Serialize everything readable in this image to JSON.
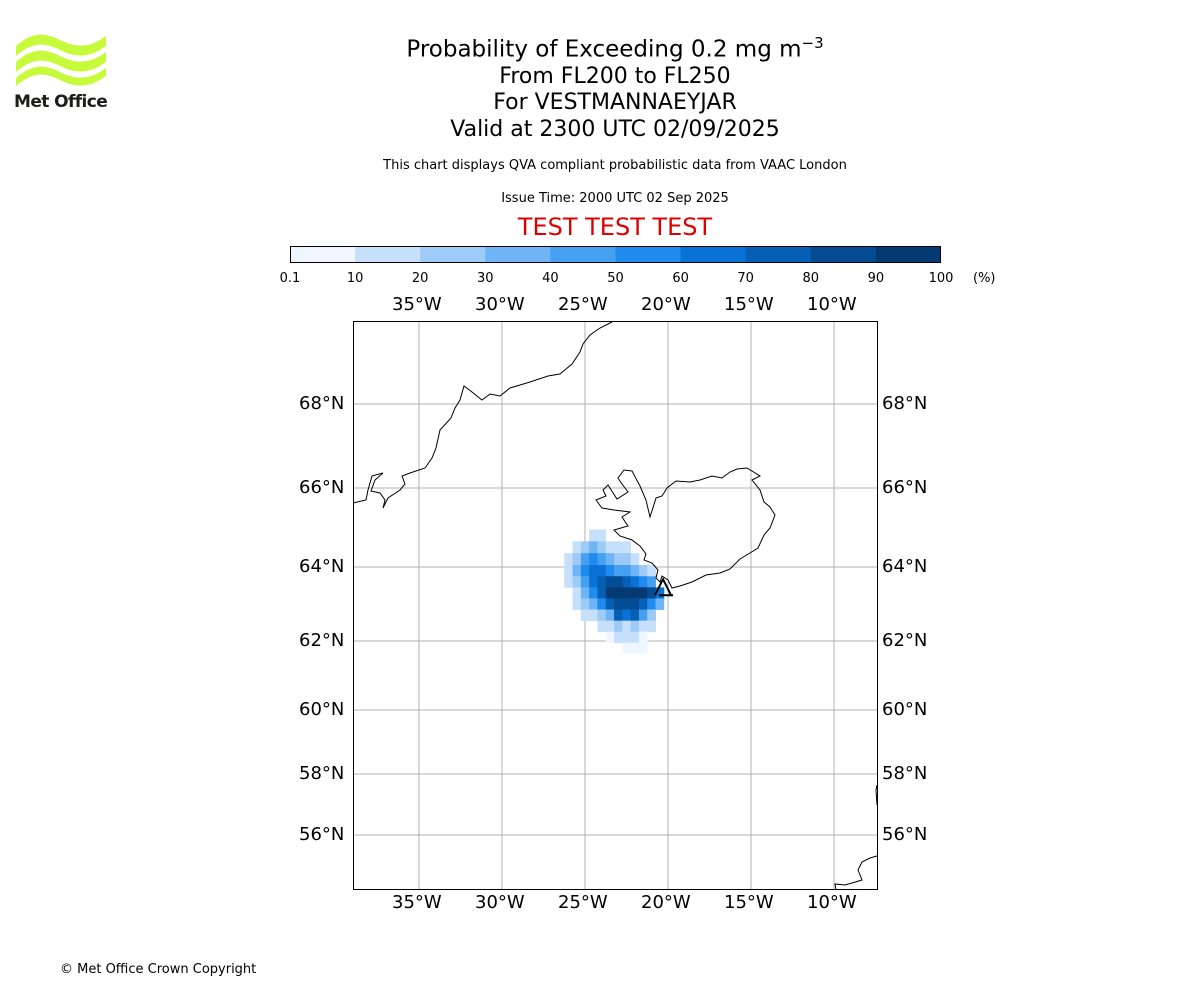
{
  "logo": {
    "text": "Met Office",
    "accent": "#c8fa3c"
  },
  "title": {
    "line1": "Probability of Exceeding 0.2 mg m",
    "line1_sup": "−3",
    "line2": "From FL200 to FL250",
    "line3": "For VESTMANNAEYJAR",
    "line4": "Valid at 2300 UTC 02/09/2025"
  },
  "subtitle": "This chart displays QVA compliant probabilistic data from VAAC London",
  "issue_time": "Issue Time: 2000 UTC 02 Sep 2025",
  "test_banner": {
    "text": "TEST TEST TEST",
    "color": "#dd0000"
  },
  "colorbar": {
    "ticks": [
      "0.1",
      "10",
      "20",
      "30",
      "40",
      "50",
      "60",
      "70",
      "80",
      "90",
      "100"
    ],
    "colors": [
      "#f0f6ff",
      "#c6e0fb",
      "#9dcaf7",
      "#6fb4f4",
      "#45a0f2",
      "#1f8bef",
      "#0a72d6",
      "#055fb5",
      "#044c94",
      "#033a73",
      "#022c55"
    ],
    "unit": "(%)"
  },
  "map": {
    "lon_labels": [
      "35°W",
      "30°W",
      "25°W",
      "20°W",
      "15°W",
      "10°W"
    ],
    "lat_labels": [
      "68°N",
      "66°N",
      "64°N",
      "62°N",
      "60°N",
      "58°N",
      "56°N"
    ],
    "grid": true,
    "volcano_marker": "triangle-icon"
  },
  "chart_data": {
    "type": "heatmap",
    "lon_range": [
      -39,
      -7.5
    ],
    "lat_range": [
      54.5,
      70
    ],
    "unit": "%",
    "cells": [
      {
        "lon": -24.5,
        "lat": 64.8,
        "value": 15
      },
      {
        "lon": -24.0,
        "lat": 64.8,
        "value": 15
      },
      {
        "lon": -25.5,
        "lat": 64.5,
        "value": 15
      },
      {
        "lon": -25.0,
        "lat": 64.5,
        "value": 25
      },
      {
        "lon": -24.5,
        "lat": 64.5,
        "value": 35
      },
      {
        "lon": -24.0,
        "lat": 64.5,
        "value": 25
      },
      {
        "lon": -23.5,
        "lat": 64.5,
        "value": 15
      },
      {
        "lon": -23.0,
        "lat": 64.5,
        "value": 15
      },
      {
        "lon": -22.5,
        "lat": 64.5,
        "value": 15
      },
      {
        "lon": -26.0,
        "lat": 64.2,
        "value": 15
      },
      {
        "lon": -25.5,
        "lat": 64.2,
        "value": 25
      },
      {
        "lon": -25.0,
        "lat": 64.2,
        "value": 45
      },
      {
        "lon": -24.5,
        "lat": 64.2,
        "value": 55
      },
      {
        "lon": -24.0,
        "lat": 64.2,
        "value": 45
      },
      {
        "lon": -23.5,
        "lat": 64.2,
        "value": 35
      },
      {
        "lon": -23.0,
        "lat": 64.2,
        "value": 25
      },
      {
        "lon": -22.5,
        "lat": 64.2,
        "value": 25
      },
      {
        "lon": -22.0,
        "lat": 64.2,
        "value": 15
      },
      {
        "lon": -26.0,
        "lat": 63.9,
        "value": 15
      },
      {
        "lon": -25.5,
        "lat": 63.9,
        "value": 35
      },
      {
        "lon": -25.0,
        "lat": 63.9,
        "value": 55
      },
      {
        "lon": -24.5,
        "lat": 63.9,
        "value": 65
      },
      {
        "lon": -24.0,
        "lat": 63.9,
        "value": 65
      },
      {
        "lon": -23.5,
        "lat": 63.9,
        "value": 55
      },
      {
        "lon": -23.0,
        "lat": 63.9,
        "value": 45
      },
      {
        "lon": -22.5,
        "lat": 63.9,
        "value": 45
      },
      {
        "lon": -22.0,
        "lat": 63.9,
        "value": 35
      },
      {
        "lon": -21.5,
        "lat": 63.9,
        "value": 25
      },
      {
        "lon": -21.0,
        "lat": 63.9,
        "value": 15
      },
      {
        "lon": -26.0,
        "lat": 63.6,
        "value": 15
      },
      {
        "lon": -25.5,
        "lat": 63.6,
        "value": 25
      },
      {
        "lon": -25.0,
        "lat": 63.6,
        "value": 45
      },
      {
        "lon": -24.5,
        "lat": 63.6,
        "value": 65
      },
      {
        "lon": -24.0,
        "lat": 63.6,
        "value": 75
      },
      {
        "lon": -23.5,
        "lat": 63.6,
        "value": 85
      },
      {
        "lon": -23.0,
        "lat": 63.6,
        "value": 85
      },
      {
        "lon": -22.5,
        "lat": 63.6,
        "value": 75
      },
      {
        "lon": -22.0,
        "lat": 63.6,
        "value": 65
      },
      {
        "lon": -21.5,
        "lat": 63.6,
        "value": 55
      },
      {
        "lon": -21.0,
        "lat": 63.6,
        "value": 45
      },
      {
        "lon": -25.5,
        "lat": 63.3,
        "value": 15
      },
      {
        "lon": -25.0,
        "lat": 63.3,
        "value": 35
      },
      {
        "lon": -24.5,
        "lat": 63.3,
        "value": 55
      },
      {
        "lon": -24.0,
        "lat": 63.3,
        "value": 75
      },
      {
        "lon": -23.5,
        "lat": 63.3,
        "value": 95
      },
      {
        "lon": -23.0,
        "lat": 63.3,
        "value": 95
      },
      {
        "lon": -22.5,
        "lat": 63.3,
        "value": 95
      },
      {
        "lon": -22.0,
        "lat": 63.3,
        "value": 95
      },
      {
        "lon": -21.5,
        "lat": 63.3,
        "value": 95
      },
      {
        "lon": -21.0,
        "lat": 63.3,
        "value": 85
      },
      {
        "lon": -20.5,
        "lat": 63.3,
        "value": 65
      },
      {
        "lon": -25.5,
        "lat": 63.0,
        "value": 15
      },
      {
        "lon": -25.0,
        "lat": 63.0,
        "value": 25
      },
      {
        "lon": -24.5,
        "lat": 63.0,
        "value": 35
      },
      {
        "lon": -24.0,
        "lat": 63.0,
        "value": 55
      },
      {
        "lon": -23.5,
        "lat": 63.0,
        "value": 75
      },
      {
        "lon": -23.0,
        "lat": 63.0,
        "value": 85
      },
      {
        "lon": -22.5,
        "lat": 63.0,
        "value": 85
      },
      {
        "lon": -22.0,
        "lat": 63.0,
        "value": 85
      },
      {
        "lon": -21.5,
        "lat": 63.0,
        "value": 75
      },
      {
        "lon": -21.0,
        "lat": 63.0,
        "value": 55
      },
      {
        "lon": -20.5,
        "lat": 63.0,
        "value": 35
      },
      {
        "lon": -25.0,
        "lat": 62.7,
        "value": 15
      },
      {
        "lon": -24.5,
        "lat": 62.7,
        "value": 15
      },
      {
        "lon": -24.0,
        "lat": 62.7,
        "value": 25
      },
      {
        "lon": -23.5,
        "lat": 62.7,
        "value": 35
      },
      {
        "lon": -23.0,
        "lat": 62.7,
        "value": 75
      },
      {
        "lon": -22.5,
        "lat": 62.7,
        "value": 65
      },
      {
        "lon": -22.0,
        "lat": 62.7,
        "value": 75
      },
      {
        "lon": -21.5,
        "lat": 62.7,
        "value": 45
      },
      {
        "lon": -21.0,
        "lat": 62.7,
        "value": 25
      },
      {
        "lon": -24.0,
        "lat": 62.4,
        "value": 15
      },
      {
        "lon": -23.5,
        "lat": 62.4,
        "value": 15
      },
      {
        "lon": -23.0,
        "lat": 62.4,
        "value": 25
      },
      {
        "lon": -22.5,
        "lat": 62.4,
        "value": 15
      },
      {
        "lon": -22.0,
        "lat": 62.4,
        "value": 25
      },
      {
        "lon": -21.5,
        "lat": 62.4,
        "value": 15
      },
      {
        "lon": -21.0,
        "lat": 62.4,
        "value": 15
      },
      {
        "lon": -23.5,
        "lat": 62.1,
        "value": 5
      },
      {
        "lon": -23.0,
        "lat": 62.1,
        "value": 15
      },
      {
        "lon": -22.5,
        "lat": 62.1,
        "value": 15
      },
      {
        "lon": -22.0,
        "lat": 62.1,
        "value": 15
      },
      {
        "lon": -21.5,
        "lat": 62.1,
        "value": 5
      },
      {
        "lon": -22.5,
        "lat": 61.8,
        "value": 5
      },
      {
        "lon": -22.0,
        "lat": 61.8,
        "value": 5
      },
      {
        "lon": -21.5,
        "lat": 61.8,
        "value": 5
      }
    ],
    "volcano": {
      "lon": -20.3,
      "lat": 63.4
    }
  },
  "copyright": "© Met Office Crown Copyright"
}
